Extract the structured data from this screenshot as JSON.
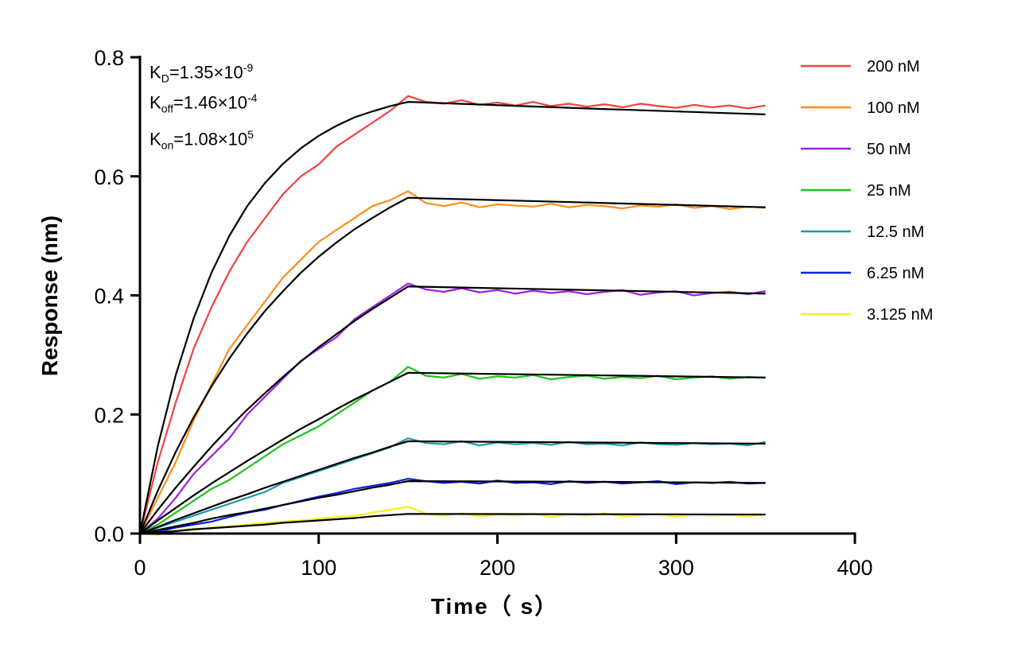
{
  "chart_data": {
    "type": "line",
    "xlabel": "Time（ s）",
    "ylabel": "Response (nm)",
    "xlim": [
      0,
      400
    ],
    "ylim": [
      0,
      0.8
    ],
    "xticks": [
      "0",
      "100",
      "200",
      "300",
      "400"
    ],
    "yticks": [
      "0.0",
      "0.2",
      "0.4",
      "0.6",
      "0.8"
    ],
    "grid": false,
    "legend_position": "top-right",
    "annotations": {
      "kd": {
        "label": "K",
        "sub": "D",
        "value": "=1.35×10",
        "exp": "-9"
      },
      "koff": {
        "label": "K",
        "sub": "off",
        "value": "=1.46×10",
        "exp": "-4"
      },
      "kon": {
        "label": "K",
        "sub": "on",
        "value": "=1.08×10",
        "exp": "5"
      }
    },
    "fit_color": "#000000",
    "measured_time": [
      0,
      10,
      20,
      30,
      40,
      50,
      60,
      70,
      80,
      90,
      100,
      110,
      120,
      130,
      140,
      150,
      160,
      170,
      180,
      190,
      200,
      210,
      220,
      230,
      240,
      250,
      260,
      270,
      280,
      290,
      300,
      310,
      320,
      330,
      340,
      350
    ],
    "fit_time": [
      0,
      10,
      20,
      30,
      40,
      50,
      60,
      70,
      80,
      90,
      100,
      110,
      120,
      130,
      140,
      150,
      250,
      350
    ],
    "series": [
      {
        "name": "200 nM",
        "color": "#F0433F",
        "measured": [
          0,
          0.12,
          0.22,
          0.31,
          0.38,
          0.44,
          0.49,
          0.53,
          0.57,
          0.6,
          0.62,
          0.65,
          0.67,
          0.69,
          0.71,
          0.735,
          0.725,
          0.722,
          0.728,
          0.72,
          0.724,
          0.719,
          0.725,
          0.718,
          0.722,
          0.717,
          0.721,
          0.716,
          0.722,
          0.718,
          0.715,
          0.72,
          0.716,
          0.719,
          0.714,
          0.719
        ],
        "fit": [
          0,
          0.147,
          0.266,
          0.361,
          0.438,
          0.5,
          0.55,
          0.589,
          0.621,
          0.647,
          0.668,
          0.685,
          0.699,
          0.709,
          0.718,
          0.725,
          0.714,
          0.704
        ]
      },
      {
        "name": "100 nM",
        "color": "#FF8C1A",
        "measured": [
          0,
          0.06,
          0.12,
          0.19,
          0.25,
          0.31,
          0.35,
          0.39,
          0.43,
          0.46,
          0.49,
          0.51,
          0.53,
          0.55,
          0.56,
          0.575,
          0.555,
          0.55,
          0.556,
          0.548,
          0.553,
          0.551,
          0.549,
          0.554,
          0.548,
          0.552,
          0.55,
          0.546,
          0.551,
          0.549,
          0.553,
          0.547,
          0.55,
          0.545,
          0.549,
          0.547
        ],
        "fit": [
          0,
          0.072,
          0.137,
          0.195,
          0.247,
          0.294,
          0.336,
          0.374,
          0.407,
          0.438,
          0.465,
          0.489,
          0.511,
          0.53,
          0.548,
          0.564,
          0.556,
          0.548
        ]
      },
      {
        "name": "50 nM",
        "color": "#A020E0",
        "measured": [
          0,
          0.025,
          0.06,
          0.1,
          0.13,
          0.16,
          0.2,
          0.23,
          0.26,
          0.29,
          0.31,
          0.33,
          0.36,
          0.38,
          0.4,
          0.42,
          0.41,
          0.406,
          0.412,
          0.405,
          0.409,
          0.403,
          0.408,
          0.404,
          0.407,
          0.402,
          0.406,
          0.409,
          0.401,
          0.405,
          0.407,
          0.4,
          0.404,
          0.406,
          0.402,
          0.407
        ],
        "fit": [
          0,
          0.04,
          0.077,
          0.112,
          0.146,
          0.178,
          0.208,
          0.236,
          0.263,
          0.289,
          0.313,
          0.335,
          0.357,
          0.377,
          0.396,
          0.415,
          0.409,
          0.403
        ]
      },
      {
        "name": "25 nM",
        "color": "#1EC31E",
        "measured": [
          0,
          0.015,
          0.035,
          0.055,
          0.075,
          0.09,
          0.11,
          0.13,
          0.15,
          0.165,
          0.18,
          0.2,
          0.22,
          0.24,
          0.255,
          0.28,
          0.265,
          0.262,
          0.268,
          0.26,
          0.264,
          0.262,
          0.266,
          0.259,
          0.263,
          0.265,
          0.26,
          0.263,
          0.261,
          0.265,
          0.259,
          0.262,
          0.264,
          0.26,
          0.263,
          0.262
        ],
        "fit": [
          0,
          0.022,
          0.043,
          0.064,
          0.084,
          0.103,
          0.122,
          0.14,
          0.158,
          0.176,
          0.192,
          0.209,
          0.225,
          0.24,
          0.255,
          0.27,
          0.266,
          0.262
        ]
      },
      {
        "name": "12.5 nM",
        "color": "#1D9BB0",
        "measured": [
          0,
          0.01,
          0.02,
          0.03,
          0.04,
          0.05,
          0.06,
          0.07,
          0.085,
          0.095,
          0.105,
          0.115,
          0.125,
          0.135,
          0.145,
          0.16,
          0.152,
          0.15,
          0.155,
          0.148,
          0.153,
          0.15,
          0.152,
          0.149,
          0.154,
          0.15,
          0.151,
          0.148,
          0.153,
          0.15,
          0.149,
          0.152,
          0.15,
          0.151,
          0.148,
          0.154
        ],
        "fit": [
          0,
          0.011,
          0.023,
          0.034,
          0.045,
          0.056,
          0.066,
          0.077,
          0.087,
          0.097,
          0.107,
          0.117,
          0.127,
          0.136,
          0.146,
          0.155,
          0.153,
          0.151
        ]
      },
      {
        "name": "6.25 nM",
        "color": "#0A1FE0",
        "measured": [
          0,
          0.003,
          0.01,
          0.015,
          0.02,
          0.028,
          0.035,
          0.04,
          0.048,
          0.055,
          0.062,
          0.068,
          0.075,
          0.08,
          0.085,
          0.092,
          0.088,
          0.085,
          0.087,
          0.084,
          0.089,
          0.085,
          0.086,
          0.083,
          0.088,
          0.085,
          0.087,
          0.084,
          0.086,
          0.088,
          0.083,
          0.086,
          0.085,
          0.087,
          0.084,
          0.085
        ],
        "fit": [
          0,
          0.006,
          0.012,
          0.018,
          0.025,
          0.031,
          0.036,
          0.042,
          0.048,
          0.054,
          0.06,
          0.065,
          0.071,
          0.077,
          0.082,
          0.088,
          0.087,
          0.085
        ]
      },
      {
        "name": "3.125 nM",
        "color": "#F5F01E",
        "measured": [
          0,
          -0.002,
          0.005,
          0.008,
          0.01,
          0.012,
          0.015,
          0.018,
          0.02,
          0.022,
          0.025,
          0.028,
          0.03,
          0.035,
          0.04,
          0.045,
          0.033,
          0.03,
          0.034,
          0.029,
          0.032,
          0.031,
          0.033,
          0.028,
          0.032,
          0.03,
          0.034,
          0.029,
          0.031,
          0.033,
          0.028,
          0.032,
          0.03,
          0.031,
          0.029,
          0.032
        ],
        "fit": [
          0,
          0.002,
          0.004,
          0.007,
          0.009,
          0.011,
          0.013,
          0.015,
          0.018,
          0.02,
          0.022,
          0.024,
          0.026,
          0.029,
          0.031,
          0.033,
          0.0325,
          0.032
        ]
      }
    ]
  }
}
